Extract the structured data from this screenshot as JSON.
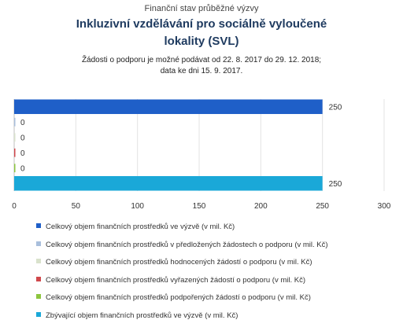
{
  "chart_data": {
    "type": "bar",
    "orientation": "horizontal",
    "pretitle": "Finanční stav průběžné výzvy",
    "title_line1": "Inkluzivní vzdělávání pro sociálně vyloučené",
    "title_line2": "lokality (SVL)",
    "subtitle_line1": "Žádosti o podporu je možné podávat od 22. 8. 2017 do 29. 12. 2018;",
    "subtitle_line2": "data ke dni 15. 9. 2017.",
    "xlim": [
      0,
      300
    ],
    "xticks": [
      "0",
      "50",
      "100",
      "150",
      "200",
      "250",
      "300"
    ],
    "grid": true,
    "legend_position": "bottom",
    "series": [
      {
        "name": "Celkový objem finančních prostředků ve výzvě (v mil. Kč)",
        "value": 250,
        "label": "250",
        "color": "#1f5fc8"
      },
      {
        "name": "Celkový objem finančních prostředků v předložených žádostech o podporu (v mil. Kč)",
        "value": 0,
        "label": "0",
        "color": "#a9bfdc"
      },
      {
        "name": "Celkový objem finančních prostředků hodnocených žádostí o podporu (v mil. Kč)",
        "value": 0,
        "label": "0",
        "color": "#d9e2cc"
      },
      {
        "name": "Celkový objem finančních prostředků vyřazených žádostí o podporu (v mil. Kč)",
        "value": 0,
        "label": "0",
        "color": "#d0484c"
      },
      {
        "name": "Celkový objem finančních prostředků podpořených žádostí o podporu (v mil. Kč)",
        "value": 0,
        "label": "0",
        "color": "#8dc63f"
      },
      {
        "name": "Zbývající objem finančních prostředků ve výzvě (v mil. Kč)",
        "value": 250,
        "label": "250",
        "color": "#1aa8d8"
      }
    ]
  }
}
